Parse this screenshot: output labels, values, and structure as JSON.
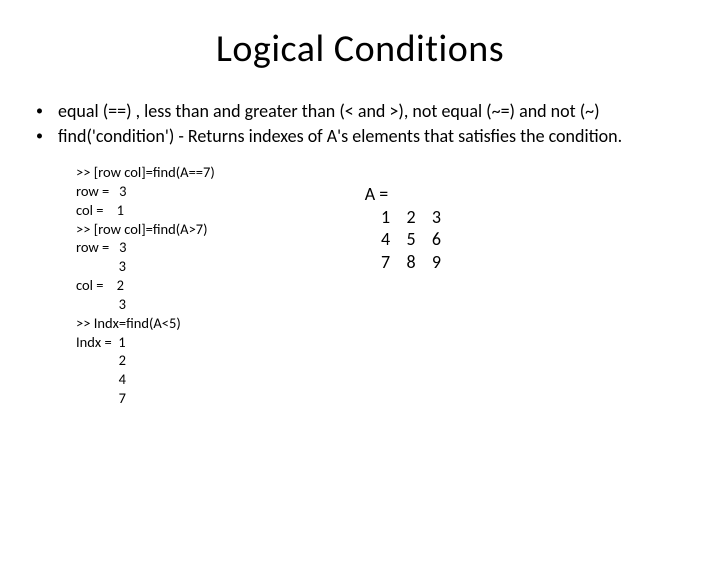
{
  "title": "Logical Conditions",
  "bullets": [
    "equal (==) , less than and greater than (< and >), not equal (~=) and not (~)",
    "find('condition') - Returns indexes of A's elements that satisfies the condition."
  ],
  "code": {
    "lines": [
      ">> [row col]=find(A==7)",
      "row =   3",
      "col =    1",
      ">> [row col]=find(A>7)",
      "row =   3",
      "             3",
      "col =    2",
      "             3",
      ">> Indx=find(A<5)",
      "Indx =  1",
      "             2",
      "             4",
      "             7"
    ]
  },
  "matrix": {
    "header": "A =",
    "rows": [
      "    1    2    3",
      "    4    5    6",
      "    7    8    9"
    ]
  }
}
